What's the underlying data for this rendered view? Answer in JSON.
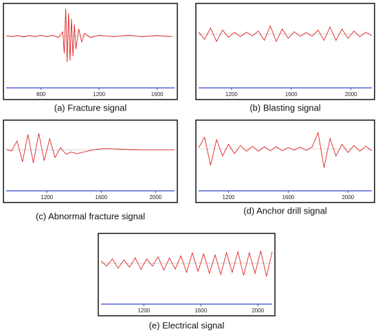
{
  "chart_data": [
    {
      "type": "line",
      "title": "(a) Fracture signal",
      "color": "#e02020",
      "xlim": [
        560,
        1720
      ],
      "xticks": [
        800,
        1200,
        1600
      ],
      "ylim": [
        -1,
        1
      ],
      "x": [
        560,
        600,
        640,
        680,
        720,
        760,
        800,
        840,
        880,
        920,
        950,
        960,
        970,
        980,
        990,
        1000,
        1010,
        1020,
        1030,
        1040,
        1060,
        1080,
        1100,
        1140,
        1200,
        1300,
        1400,
        1500,
        1600,
        1700
      ],
      "values": [
        0.02,
        -0.02,
        0.02,
        -0.03,
        0.02,
        -0.02,
        0.03,
        -0.02,
        0.03,
        -0.05,
        0.15,
        -0.6,
        0.95,
        -0.9,
        0.8,
        -0.85,
        0.6,
        -0.7,
        0.4,
        -0.45,
        0.25,
        -0.2,
        0.1,
        -0.05,
        0.03,
        -0.02,
        0.03,
        -0.02,
        0.02,
        -0.02
      ]
    },
    {
      "type": "line",
      "title": "(b) Blasting signal",
      "color": "#e02020",
      "xlim": [
        980,
        2140
      ],
      "xticks": [
        1200,
        1600,
        2000
      ],
      "ylim": [
        -1,
        1
      ],
      "x": [
        980,
        1020,
        1060,
        1100,
        1140,
        1180,
        1220,
        1260,
        1300,
        1340,
        1380,
        1420,
        1460,
        1500,
        1540,
        1580,
        1620,
        1660,
        1700,
        1740,
        1780,
        1820,
        1860,
        1900,
        1940,
        1980,
        2020,
        2060,
        2100,
        2140
      ],
      "values": [
        0.1,
        -0.25,
        0.3,
        -0.35,
        0.2,
        -0.15,
        0.1,
        -0.12,
        0.1,
        -0.08,
        0.15,
        -0.3,
        0.4,
        -0.35,
        0.25,
        -0.2,
        0.12,
        -0.1,
        0.08,
        -0.1,
        0.2,
        -0.3,
        0.35,
        -0.3,
        0.25,
        -0.2,
        0.15,
        -0.12,
        0.1,
        -0.08
      ]
    },
    {
      "type": "line",
      "title": "(c) Abnormal fracture signal",
      "color": "#e02020",
      "xlim": [
        900,
        2140
      ],
      "xticks": [
        1200,
        1600,
        2000
      ],
      "ylim": [
        -1,
        1
      ],
      "x": [
        900,
        940,
        980,
        1020,
        1060,
        1100,
        1140,
        1180,
        1220,
        1260,
        1300,
        1340,
        1380,
        1420,
        1460,
        1500,
        1540,
        1580,
        1620,
        1660,
        1700,
        1740,
        1780,
        1820,
        1860,
        1900,
        1940,
        1980,
        2020,
        2060,
        2100,
        2140
      ],
      "values": [
        0.02,
        -0.05,
        0.4,
        -0.55,
        0.7,
        -0.6,
        0.75,
        -0.5,
        0.5,
        -0.35,
        0.1,
        -0.2,
        -0.1,
        -0.18,
        -0.12,
        -0.06,
        0,
        0.03,
        0.05,
        0.05,
        0.04,
        0.03,
        0.02,
        0.01,
        0.01,
        0,
        0,
        0,
        0,
        0,
        0,
        0
      ]
    },
    {
      "type": "line",
      "title": "(d) Anchor drill signal",
      "color": "#e02020",
      "xlim": [
        1000,
        2160
      ],
      "xticks": [
        1200,
        1600,
        2000
      ],
      "ylim": [
        -1,
        1
      ],
      "x": [
        1000,
        1040,
        1080,
        1120,
        1160,
        1200,
        1240,
        1280,
        1320,
        1360,
        1400,
        1440,
        1480,
        1520,
        1560,
        1600,
        1640,
        1680,
        1720,
        1760,
        1800,
        1840,
        1880,
        1920,
        1960,
        2000,
        2040,
        2080,
        2120,
        2160
      ],
      "values": [
        0.05,
        0.5,
        -0.7,
        0.4,
        -0.3,
        0.2,
        -0.2,
        0.15,
        -0.1,
        0.12,
        -0.1,
        0.1,
        -0.08,
        0.1,
        -0.08,
        0.06,
        -0.05,
        0.08,
        -0.06,
        0.08,
        0.7,
        -0.8,
        0.45,
        -0.3,
        0.2,
        -0.15,
        0.15,
        -0.1,
        0.12,
        -0.08
      ]
    },
    {
      "type": "line",
      "title": "(e) Electrical signal",
      "color": "#e02020",
      "xlim": [
        900,
        2100
      ],
      "xticks": [
        1200,
        1600,
        2000
      ],
      "ylim": [
        -1,
        1
      ],
      "x": [
        900,
        940,
        980,
        1020,
        1060,
        1100,
        1140,
        1180,
        1220,
        1260,
        1300,
        1340,
        1380,
        1420,
        1460,
        1500,
        1540,
        1580,
        1620,
        1660,
        1700,
        1740,
        1780,
        1820,
        1860,
        1900,
        1940,
        1980,
        2020,
        2060,
        2100
      ],
      "values": [
        0.1,
        -0.15,
        0.2,
        -0.25,
        0.15,
        -0.2,
        0.25,
        -0.3,
        0.2,
        -0.15,
        0.3,
        -0.35,
        0.25,
        -0.3,
        0.35,
        -0.45,
        0.5,
        -0.4,
        0.45,
        -0.5,
        0.4,
        -0.55,
        0.5,
        -0.45,
        0.55,
        -0.6,
        0.5,
        -0.5,
        0.6,
        -0.65,
        0.55
      ]
    }
  ]
}
